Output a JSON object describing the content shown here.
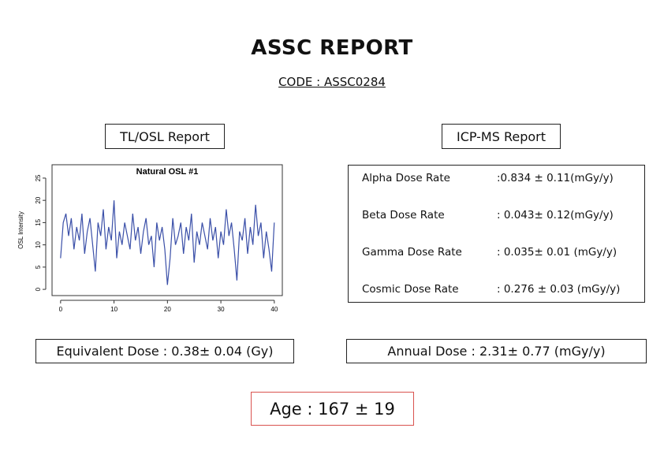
{
  "header": {
    "title": "ASSC REPORT",
    "code": "CODE : ASSC0284"
  },
  "tl_osl": {
    "label": "TL/OSL Report"
  },
  "icp_ms": {
    "label": "ICP-MS Report",
    "rows": [
      {
        "name": "Alpha Dose Rate",
        "value": ":0.834 ± 0.11(mGy/y)"
      },
      {
        "name": "Beta Dose Rate",
        "value": ": 0.043± 0.12(mGy/y)"
      },
      {
        "name": "Gamma Dose Rate",
        "value": ": 0.035± 0.01 (mGy/y)"
      },
      {
        "name": "Cosmic Dose Rate",
        "value": ": 0.276 ± 0.03 (mGy/y)"
      }
    ]
  },
  "equivalent_dose": "Equivalent Dose : 0.38± 0.04 (Gy)",
  "annual_dose": "Annual Dose : 2.31± 0.77 (mGy/y)",
  "age": "Age : 167 ± 19",
  "chart_data": {
    "type": "line",
    "title": "Natural OSL #1",
    "y_label": "OSL Intensity",
    "color": "#3a4fa8",
    "x": [
      0,
      0.5,
      1,
      1.5,
      2,
      2.5,
      3,
      3.5,
      4,
      4.5,
      5,
      5.5,
      6,
      6.5,
      7,
      7.5,
      8,
      8.5,
      9,
      9.5,
      10,
      10.5,
      11,
      11.5,
      12,
      12.5,
      13,
      13.5,
      14,
      14.5,
      15,
      15.5,
      16,
      16.5,
      17,
      17.5,
      18,
      18.5,
      19,
      19.5,
      20,
      20.5,
      21,
      21.5,
      22,
      22.5,
      23,
      23.5,
      24,
      24.5,
      25,
      25.5,
      26,
      26.5,
      27,
      27.5,
      28,
      28.5,
      29,
      29.5,
      30,
      30.5,
      31,
      31.5,
      32,
      32.5,
      33,
      33.5,
      34,
      34.5,
      35,
      35.5,
      36,
      36.5,
      37,
      37.5,
      38,
      38.5,
      39,
      39.5,
      40
    ],
    "values": [
      7,
      15,
      17,
      12,
      16,
      9,
      14,
      11,
      17,
      8,
      13,
      16,
      10,
      4,
      15,
      12,
      18,
      9,
      14,
      11,
      20,
      7,
      13,
      10,
      15,
      12,
      9,
      17,
      11,
      14,
      8,
      13,
      16,
      10,
      12,
      5,
      15,
      11,
      14,
      9,
      1,
      7,
      16,
      10,
      12,
      15,
      8,
      14,
      11,
      17,
      6,
      13,
      10,
      15,
      12,
      9,
      16,
      11,
      14,
      7,
      13,
      10,
      18,
      12,
      15,
      9,
      2,
      13,
      11,
      16,
      8,
      14,
      10,
      19,
      12,
      15,
      7,
      13,
      9,
      4,
      15
    ],
    "xlim": [
      -1.6,
      41.5
    ],
    "ylim": [
      -1.4,
      28
    ],
    "xticks": [
      0,
      10,
      20,
      30,
      40
    ],
    "yticks": [
      0,
      5,
      10,
      15,
      20,
      25
    ]
  }
}
